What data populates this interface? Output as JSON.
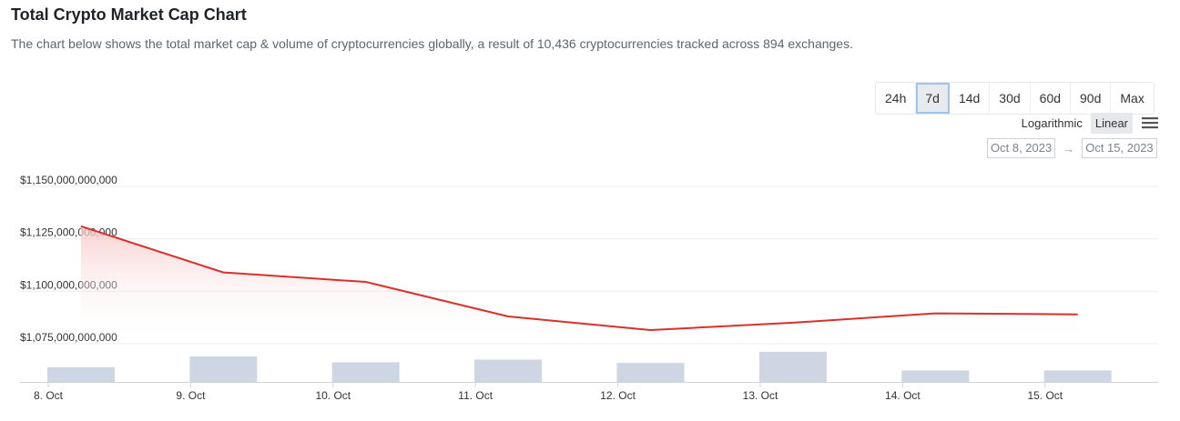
{
  "header": {
    "title": "Total Crypto Market Cap Chart",
    "subtitle": "The chart below shows the total market cap & volume of cryptocurrencies globally, a result of 10,436 cryptocurrencies tracked across 894 exchanges."
  },
  "range_buttons": [
    "24h",
    "7d",
    "14d",
    "30d",
    "60d",
    "90d",
    "Max"
  ],
  "active_range": "7d",
  "scale": {
    "logarithmic": "Logarithmic",
    "linear": "Linear",
    "active": "Linear"
  },
  "date_range": {
    "from": "Oct 8, 2023",
    "arrow": "→",
    "to": "Oct 15, 2023"
  },
  "colors": {
    "line": "#d9302b",
    "area_top": "#f6c6c4",
    "volume_bar": "#cdd6e2",
    "grid": "#e9ecef"
  },
  "icons": {
    "menu": "hamburger-menu-icon"
  },
  "chart_data": {
    "type": "line",
    "title": "",
    "xlabel": "",
    "ylabel": "",
    "x_tick_labels": [
      "8. Oct",
      "9. Oct",
      "10. Oct",
      "11. Oct",
      "12. Oct",
      "13. Oct",
      "14. Oct",
      "15. Oct"
    ],
    "y_tick_labels": [
      "$1,075,000,000,000",
      "$1,100,000,000,000",
      "$1,125,000,000,000",
      "$1,150,000,000,000"
    ],
    "ylim": [
      1075000000000,
      1150000000000
    ],
    "grid": true,
    "series": [
      {
        "type": "area",
        "x": [
          8.3,
          9.3,
          10.3,
          11.3,
          12.3,
          13.3,
          14.3,
          15.3
        ],
        "values": [
          1131000000000,
          1109000000000,
          1104500000000,
          1088000000000,
          1081500000000,
          1085000000000,
          1089500000000,
          1089000000000
        ]
      },
      {
        "type": "bar",
        "x": [
          8.3,
          9.3,
          10.3,
          11.3,
          12.3,
          13.3,
          14.3,
          15.3
        ],
        "values": [
          0.45,
          0.78,
          0.6,
          0.68,
          0.58,
          0.92,
          0.35,
          0.35
        ]
      }
    ]
  }
}
